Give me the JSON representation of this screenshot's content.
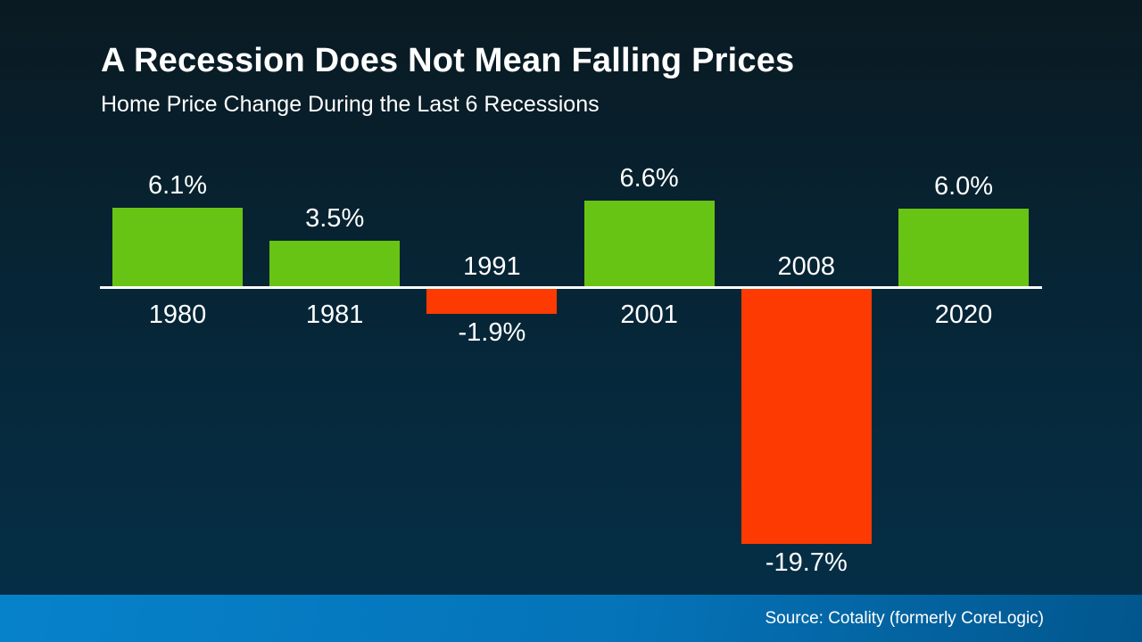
{
  "header": {
    "title": "A Recession Does Not Mean Falling Prices",
    "subtitle": "Home Price Change During the Last 6 Recessions"
  },
  "chart_data": {
    "type": "bar",
    "title": "A Recession Does Not Mean Falling Prices",
    "subtitle": "Home Price Change During the Last 6 Recessions",
    "categories": [
      "1980",
      "1981",
      "1991",
      "2001",
      "2008",
      "2020"
    ],
    "values": [
      6.1,
      3.5,
      -1.9,
      6.6,
      -19.7,
      6.0
    ],
    "value_labels": [
      "6.1%",
      "3.5%",
      "-1.9%",
      "6.6%",
      "-19.7%",
      "6.0%"
    ],
    "xlabel": "",
    "ylabel": "",
    "ylim": [
      -20.5,
      7
    ],
    "grid": false,
    "legend": false,
    "baseline": 0,
    "positive_color": "#68c414",
    "negative_color": "#fc3a02",
    "baseline_color": "#ffffff",
    "label_color": "#ffffff"
  },
  "footer": {
    "source": "Source: Cotality (formerly CoreLogic)"
  },
  "colors": {
    "background_top": "#0a1a22",
    "background_mid": "#062637",
    "background_bottom": "#053049",
    "footer_gradient_left": "#0682cb",
    "footer_gradient_mid": "#0573b8",
    "footer_gradient_right": "#02568d",
    "text": "#ffffff"
  }
}
